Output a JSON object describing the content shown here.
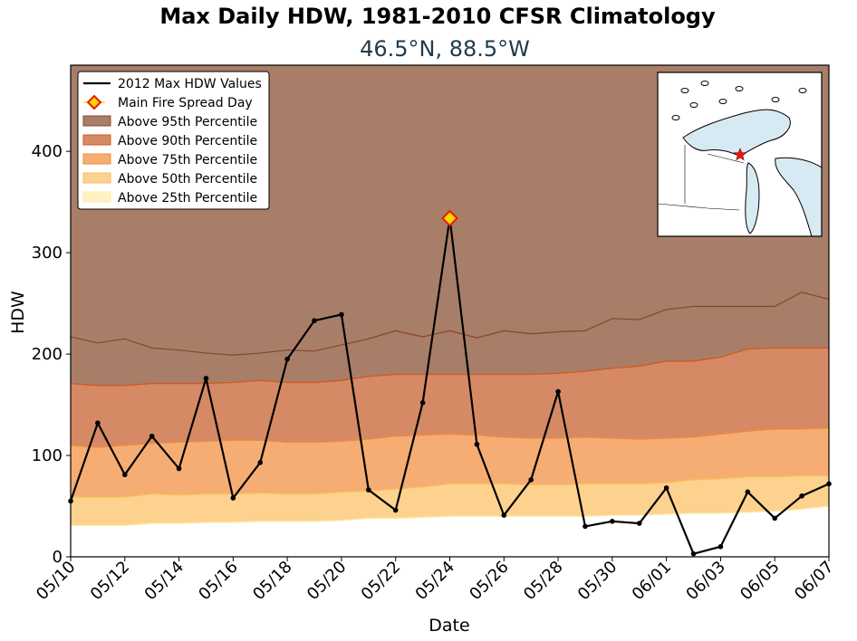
{
  "chart_data": {
    "type": "area",
    "title": "Max Daily HDW, 1981-2010 CFSR Climatology",
    "subtitle": "46.5°N, 88.5°W",
    "xlabel": "Date",
    "ylabel": "HDW",
    "ylim": [
      0,
      485
    ],
    "yticks": [
      0,
      100,
      200,
      300,
      400
    ],
    "x": [
      "05/10",
      "05/11",
      "05/12",
      "05/13",
      "05/14",
      "05/15",
      "05/16",
      "05/17",
      "05/18",
      "05/19",
      "05/20",
      "05/21",
      "05/22",
      "05/23",
      "05/24",
      "05/25",
      "05/26",
      "05/27",
      "05/28",
      "05/29",
      "05/30",
      "05/31",
      "06/01",
      "06/02",
      "06/03",
      "06/04",
      "06/05",
      "06/06",
      "06/07"
    ],
    "xtick_labels": [
      "05/10",
      "05/12",
      "05/14",
      "05/16",
      "05/18",
      "05/20",
      "05/22",
      "05/24",
      "05/26",
      "05/28",
      "05/30",
      "06/01",
      "06/03",
      "06/05",
      "06/07"
    ],
    "legend_position": "upper-left",
    "series": [
      {
        "name": "2012 Max HDW Values",
        "kind": "line",
        "color": "#000000",
        "values": [
          55,
          132,
          81,
          119,
          87,
          176,
          58,
          93,
          195,
          233,
          239,
          66,
          46,
          152,
          334,
          111,
          41,
          76,
          163,
          30,
          35,
          33,
          68,
          3,
          10,
          64,
          38,
          60,
          72
        ]
      },
      {
        "name": "Main Fire Spread Day",
        "kind": "marker",
        "color": "#ffd700",
        "edge_color": "#e8190c",
        "x": "05/24",
        "value": 334
      }
    ],
    "bands": [
      {
        "name": "Above 95th Percentile",
        "color": "#a87e69",
        "edge_color": "#8a4a2e",
        "values": [
          217,
          211,
          215,
          206,
          204,
          201,
          199,
          201,
          204,
          203,
          209,
          215,
          223,
          217,
          223,
          216,
          223,
          220,
          222,
          223,
          235,
          234,
          244,
          247,
          247,
          247,
          247,
          261,
          254
        ]
      },
      {
        "name": "Above 90th Percentile",
        "color": "#d58a65",
        "edge_color": "#d05a20",
        "values": [
          171,
          169,
          169,
          171,
          171,
          171,
          172,
          174,
          172,
          172,
          174,
          178,
          180,
          180,
          180,
          180,
          180,
          180,
          181,
          183,
          186,
          188,
          193,
          193,
          197,
          205,
          206,
          206,
          206
        ]
      },
      {
        "name": "Above 75th Percentile",
        "color": "#f6ad74",
        "edge_color": "#f08a3c",
        "values": [
          110,
          108,
          110,
          112,
          113,
          114,
          115,
          115,
          113,
          113,
          114,
          116,
          119,
          120,
          121,
          120,
          118,
          117,
          117,
          118,
          117,
          116,
          117,
          118,
          121,
          124,
          126,
          126,
          127
        ]
      },
      {
        "name": "Above 50th Percentile",
        "color": "#fdd28e",
        "edge_color": "#f6bf5c",
        "values": [
          59,
          59,
          59,
          62,
          61,
          62,
          62,
          63,
          62,
          62,
          64,
          65,
          67,
          69,
          72,
          72,
          72,
          71,
          71,
          72,
          72,
          72,
          73,
          76,
          77,
          79,
          79,
          80,
          80
        ]
      },
      {
        "name": "Above 25th Percentile",
        "color": "#fff2c7",
        "edge_color": "#fde9a6",
        "values": [
          31,
          31,
          31,
          33,
          33,
          34,
          34,
          35,
          35,
          35,
          36,
          38,
          38,
          39,
          40,
          40,
          40,
          40,
          40,
          40,
          41,
          41,
          42,
          43,
          43,
          44,
          45,
          47,
          50
        ]
      }
    ],
    "legend_entries": [
      "2012 Max HDW Values",
      "Main Fire Spread Day",
      "Above 95th Percentile",
      "Above 90th Percentile",
      "Above 75th Percentile",
      "Above 50th Percentile",
      "Above 25th Percentile"
    ],
    "inset_map": {
      "land_color": "#ffffff",
      "water_color": "#d7e9f2",
      "marker_color": "#e8190c",
      "marker_lat": 46.5,
      "marker_lon": -88.5
    }
  }
}
